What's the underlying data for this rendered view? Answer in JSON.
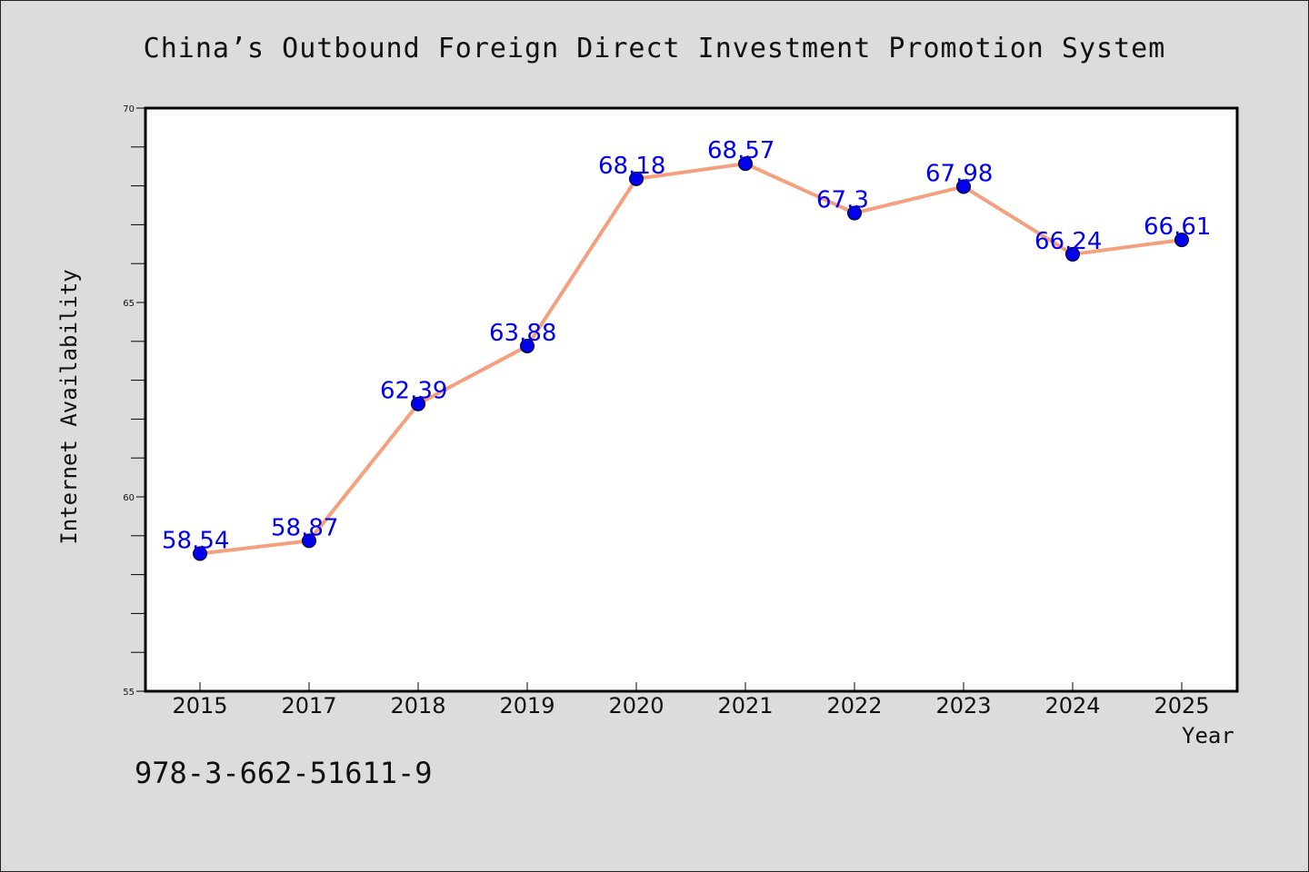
{
  "chart_data": {
    "type": "line",
    "title": "China’s Outbound Foreign Direct Investment Promotion System",
    "xlabel": "Year",
    "ylabel": "Internet Availability",
    "categories": [
      "2015",
      "2017",
      "2018",
      "2019",
      "2020",
      "2021",
      "2022",
      "2023",
      "2024",
      "2025"
    ],
    "series": [
      {
        "values": [
          58.54,
          58.87,
          62.39,
          63.88,
          68.18,
          68.57,
          67.3,
          67.98,
          66.24,
          66.61
        ],
        "data_labels": [
          "58.54",
          "58.87",
          "62.39",
          "63.88",
          "68.18",
          "68.57",
          "67.3",
          "67.98",
          "66.24",
          "66.61"
        ],
        "line_color": "#f4a07e",
        "marker_color": "#0000ee",
        "label_color": "#0000ee"
      }
    ],
    "ylim": [
      55,
      70
    ],
    "yticks": [
      "55",
      "60",
      "65",
      "70"
    ],
    "grid": false
  },
  "footer": {
    "note": "978-3-662-51611-9"
  },
  "colors": {
    "background": "#dcdcdc",
    "plot_background": "#ffffff"
  }
}
